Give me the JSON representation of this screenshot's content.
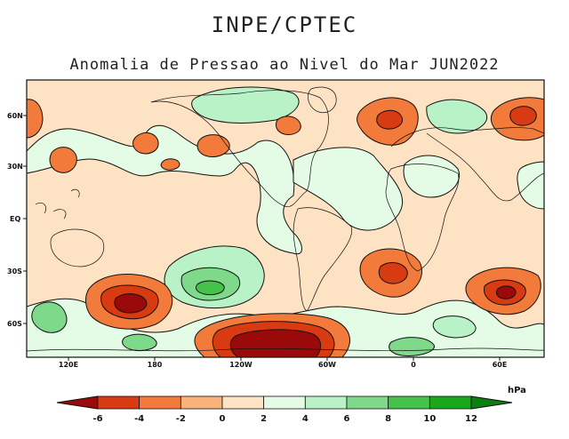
{
  "header": {
    "title": "INPE/CPTEC",
    "subtitle": "Anomalia de Pressao ao Nivel do Mar JUN2022"
  },
  "map": {
    "lat_labels": [
      "60N",
      "30N",
      "EQ",
      "30S",
      "60S"
    ],
    "lon_labels": [
      "120E",
      "180",
      "120W",
      "60W",
      "0",
      "60E"
    ]
  },
  "colorbar": {
    "unit": "hPa",
    "ticks": [
      "-6",
      "-4",
      "-2",
      "0",
      "2",
      "4",
      "6",
      "8",
      "10",
      "12"
    ],
    "colors": [
      "#9b0a0a",
      "#d83a12",
      "#f27a3a",
      "#f9b27a",
      "#fde2c4",
      "#e4fbe6",
      "#b9f2c6",
      "#7ed98a",
      "#44c24a",
      "#1aa71c",
      "#0c7f12"
    ]
  },
  "colors": {
    "strong_negative": "#9b0a0a",
    "negative": "#d83a12",
    "weak_negative": "#f27a3a",
    "light_negative": "#f9b27a",
    "near_zero_negative": "#fde2c4",
    "near_zero_positive": "#e4fbe6",
    "light_positive": "#b9f2c6",
    "positive": "#7ed98a",
    "strong_positive": "#44c24a"
  }
}
